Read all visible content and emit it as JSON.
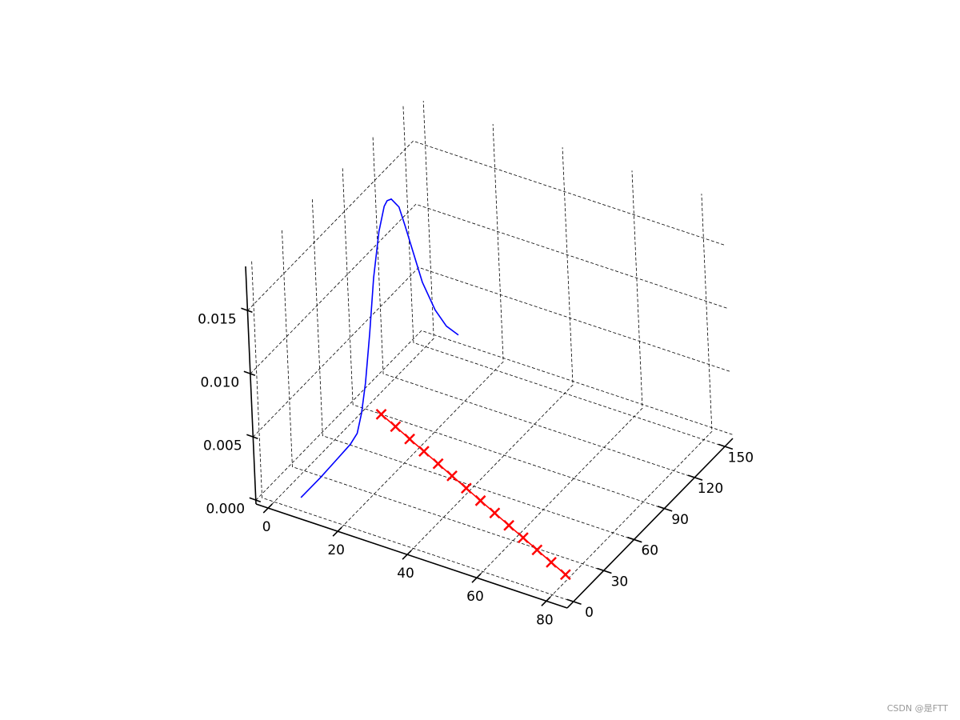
{
  "chart_data": {
    "type": "line3d",
    "xlim": [
      -3.5,
      86
    ],
    "ylim": [
      -6,
      158
    ],
    "zlim": [
      -0.0003,
      0.0185
    ],
    "xticks": [
      0,
      20,
      40,
      60,
      80
    ],
    "yticks": [
      0,
      30,
      60,
      90,
      120,
      150
    ],
    "zticks": [
      {
        "value": 0,
        "label": "0.000"
      },
      0.005,
      {
        "value": 0.01,
        "label": "0.010"
      },
      0.015
    ],
    "grid": true,
    "series": [
      {
        "color": "#0000ff",
        "x": [
          6,
          6,
          6,
          6,
          6,
          6,
          6,
          6,
          6,
          6,
          6,
          6,
          6,
          6,
          6,
          6,
          6,
          6,
          6,
          6
        ],
        "y": [
          6,
          25,
          41,
          55,
          62,
          67,
          72,
          78,
          84,
          91,
          97,
          100,
          104,
          111,
          116,
          123,
          130,
          141,
          151,
          162
        ],
        "z": [
          0.0001,
          0.0001,
          0.0002,
          0.0003,
          0.0006,
          0.0018,
          0.0038,
          0.0072,
          0.0111,
          0.0142,
          0.0157,
          0.0159,
          0.0157,
          0.0145,
          0.0126,
          0.0098,
          0.007,
          0.0039,
          0.0018,
          0.0002
        ]
      },
      {
        "color": "#ff0000",
        "marker": "x",
        "x": [
          5.5,
          11.2,
          16.9,
          22.6,
          28.3,
          33.9,
          39.6,
          45.3,
          51.0,
          56.7,
          62.4,
          68.0,
          73.7,
          79.4
        ],
        "y": [
          87.2,
          81.7,
          76.1,
          70.6,
          65.0,
          59.5,
          54.0,
          48.4,
          42.9,
          37.3,
          31.8,
          26.3,
          20.7,
          15.2
        ],
        "z": [
          0,
          0,
          0,
          0,
          0,
          0,
          0,
          0,
          0,
          0,
          0,
          0,
          0,
          0
        ]
      }
    ]
  },
  "watermark": "CSDN @是FTT"
}
